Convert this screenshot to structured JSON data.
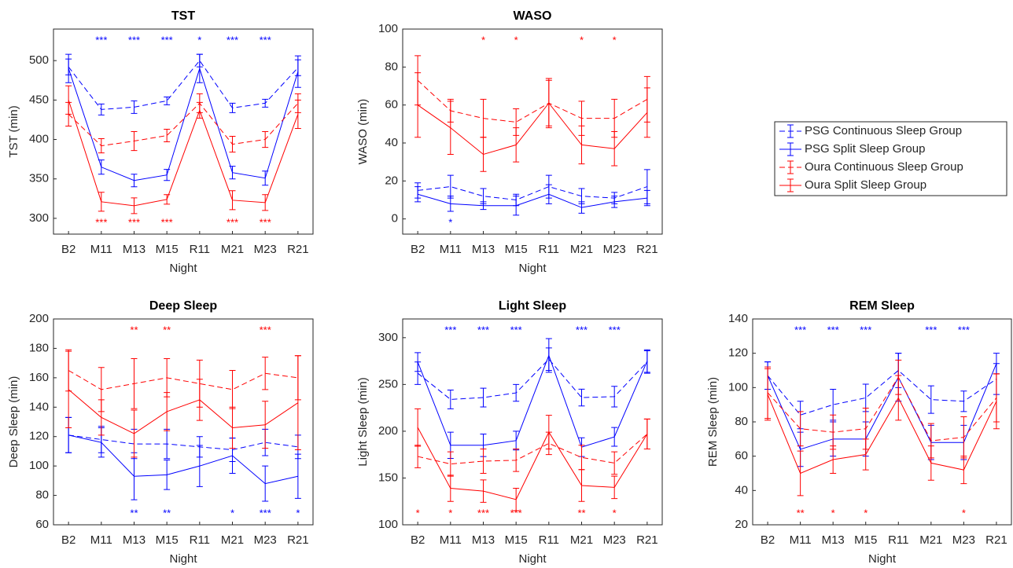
{
  "series_styles": [
    {
      "name": "PSG Continuous Sleep Group",
      "color": "#0000ff",
      "dashed": true
    },
    {
      "name": "PSG Split Sleep Group",
      "color": "#0000ff",
      "dashed": false
    },
    {
      "name": "Oura Continuous Sleep Group",
      "color": "#ff0000",
      "dashed": true
    },
    {
      "name": "Oura Split Sleep Group",
      "color": "#ff0000",
      "dashed": false
    }
  ],
  "legend": {
    "location": "east"
  },
  "chart_data": [
    {
      "type": "errorbar-line",
      "title": "TST",
      "x_label": "Night",
      "y_label": "TST (min)",
      "categories": [
        "B2",
        "M11",
        "M13",
        "M15",
        "R11",
        "M21",
        "M23",
        "R21"
      ],
      "ylim": [
        280,
        540
      ],
      "yticks": [
        300,
        350,
        400,
        450,
        500
      ],
      "series": [
        {
          "values": [
            492,
            438,
            441,
            449,
            500,
            440,
            446,
            491
          ],
          "errors": [
            10,
            7,
            8,
            5,
            8,
            6,
            5,
            10
          ]
        },
        {
          "values": [
            490,
            365,
            348,
            355,
            490,
            358,
            351,
            486
          ],
          "errors": [
            18,
            9,
            8,
            7,
            18,
            8,
            9,
            20
          ]
        },
        {
          "values": [
            432,
            392,
            398,
            405,
            446,
            394,
            400,
            446
          ],
          "errors": [
            15,
            9,
            12,
            8,
            12,
            10,
            10,
            12
          ]
        },
        {
          "values": [
            450,
            321,
            316,
            324,
            437,
            323,
            320,
            432
          ],
          "errors": [
            18,
            12,
            10,
            6,
            10,
            12,
            10,
            18
          ]
        }
      ],
      "significance": [
        {
          "color": "#0000ff",
          "position": "top",
          "labels": [
            null,
            "***",
            "***",
            "***",
            "*",
            "***",
            "***",
            null
          ]
        },
        {
          "color": "#ff0000",
          "position": "bottom",
          "labels": [
            null,
            "***",
            "***",
            "***",
            null,
            "***",
            "***",
            null
          ]
        }
      ]
    },
    {
      "type": "errorbar-line",
      "title": "WASO",
      "x_label": "Night",
      "y_label": "WASO (min)",
      "categories": [
        "B2",
        "M11",
        "M13",
        "M15",
        "R11",
        "M21",
        "M23",
        "R21"
      ],
      "ylim": [
        -8,
        100
      ],
      "yticks": [
        0,
        20,
        40,
        60,
        80,
        100
      ],
      "series": [
        {
          "values": [
            15,
            17,
            12,
            10,
            17,
            12,
            11,
            17
          ],
          "errors": [
            4,
            6,
            4,
            3,
            6,
            4,
            3,
            9
          ]
        },
        {
          "values": [
            13,
            8,
            7,
            7,
            13,
            6,
            9,
            11
          ],
          "errors": [
            4,
            4,
            2,
            5,
            5,
            3,
            3,
            4
          ]
        },
        {
          "values": [
            73,
            57,
            53,
            51,
            61,
            53,
            53,
            63
          ],
          "errors": [
            13,
            6,
            10,
            7,
            13,
            9,
            10,
            12
          ]
        },
        {
          "values": [
            60,
            48,
            34,
            39,
            61,
            39,
            37,
            56
          ],
          "errors": [
            17,
            14,
            9,
            9,
            12,
            10,
            9,
            13
          ]
        }
      ],
      "significance": [
        {
          "color": "#ff0000",
          "position": "top",
          "labels": [
            null,
            null,
            "*",
            "*",
            null,
            "*",
            "*",
            null
          ]
        },
        {
          "color": "#0000ff",
          "position": "bottom",
          "labels": [
            null,
            "*",
            null,
            null,
            null,
            null,
            null,
            null
          ]
        }
      ]
    },
    {
      "type": "errorbar-line",
      "title": "Deep Sleep",
      "x_label": "Night",
      "y_label": "Deep Sleep (min)",
      "categories": [
        "B2",
        "M11",
        "M13",
        "M15",
        "R11",
        "M21",
        "M23",
        "R21"
      ],
      "ylim": [
        60,
        200
      ],
      "yticks": [
        60,
        80,
        100,
        120,
        140,
        160,
        180,
        200
      ],
      "series": [
        {
          "values": [
            121,
            118,
            115,
            115,
            113,
            111,
            116,
            113
          ],
          "errors": [
            12,
            9,
            10,
            10,
            7,
            8,
            9,
            8
          ]
        },
        {
          "values": [
            121,
            116,
            93,
            94,
            100,
            107,
            88,
            93
          ],
          "errors": [
            12,
            10,
            16,
            10,
            14,
            12,
            12,
            15
          ]
        },
        {
          "values": [
            165,
            152,
            156,
            160,
            156,
            152,
            163,
            160
          ],
          "errors": [
            14,
            15,
            17,
            13,
            16,
            13,
            11,
            15
          ]
        },
        {
          "values": [
            152,
            133,
            122,
            137,
            145,
            126,
            128,
            143
          ],
          "errors": [
            26,
            12,
            16,
            13,
            14,
            14,
            16,
            32
          ]
        }
      ],
      "significance": [
        {
          "color": "#ff0000",
          "position": "top",
          "labels": [
            null,
            null,
            "**",
            "**",
            null,
            null,
            "***",
            null
          ]
        },
        {
          "color": "#0000ff",
          "position": "bottom",
          "labels": [
            null,
            null,
            "**",
            "**",
            null,
            "*",
            "***",
            "*"
          ]
        }
      ]
    },
    {
      "type": "errorbar-line",
      "title": "Light Sleep",
      "x_label": "Night",
      "y_label": "Light Sleep (min)",
      "categories": [
        "B2",
        "M11",
        "M13",
        "M15",
        "R11",
        "M21",
        "M23",
        "R21"
      ],
      "ylim": [
        100,
        320
      ],
      "yticks": [
        100,
        150,
        200,
        250,
        300
      ],
      "series": [
        {
          "values": [
            262,
            234,
            236,
            241,
            277,
            236,
            237,
            274
          ],
          "errors": [
            12,
            10,
            10,
            9,
            12,
            9,
            11,
            12
          ]
        },
        {
          "values": [
            274,
            185,
            185,
            190,
            281,
            183,
            194,
            275
          ],
          "errors": [
            10,
            14,
            12,
            10,
            18,
            10,
            10,
            12
          ]
        },
        {
          "values": [
            173,
            165,
            168,
            169,
            187,
            172,
            166,
            197
          ],
          "errors": [
            12,
            13,
            13,
            12,
            12,
            13,
            12,
            16
          ]
        },
        {
          "values": [
            204,
            139,
            136,
            127,
            199,
            142,
            140,
            197
          ],
          "errors": [
            20,
            14,
            12,
            12,
            18,
            17,
            12,
            16
          ]
        }
      ],
      "significance": [
        {
          "color": "#0000ff",
          "position": "top",
          "labels": [
            null,
            "***",
            "***",
            "***",
            null,
            "***",
            "***",
            null
          ]
        },
        {
          "color": "#ff0000",
          "position": "bottom",
          "labels": [
            "*",
            "*",
            "***",
            "***",
            null,
            "**",
            "*",
            null
          ]
        }
      ]
    },
    {
      "type": "errorbar-line",
      "title": "REM Sleep",
      "x_label": "Night",
      "y_label": "REM Sleep (min)",
      "categories": [
        "B2",
        "M11",
        "M13",
        "M15",
        "R11",
        "M21",
        "M23",
        "R21"
      ],
      "ylim": [
        20,
        140
      ],
      "yticks": [
        20,
        40,
        60,
        80,
        100,
        120,
        140
      ],
      "series": [
        {
          "values": [
            107,
            84,
            90,
            94,
            110,
            93,
            92,
            105
          ],
          "errors": [
            8,
            8,
            9,
            8,
            10,
            8,
            6,
            9
          ]
        },
        {
          "values": [
            107,
            64,
            70,
            70,
            106,
            68,
            68,
            114
          ],
          "errors": [
            8,
            10,
            10,
            10,
            14,
            10,
            10,
            6
          ]
        },
        {
          "values": [
            97,
            76,
            74,
            76,
            106,
            69,
            71,
            94
          ],
          "errors": [
            15,
            10,
            10,
            12,
            10,
            10,
            12,
            14
          ]
        },
        {
          "values": [
            96,
            50,
            58,
            61,
            94,
            56,
            52,
            92
          ],
          "errors": [
            15,
            13,
            8,
            9,
            13,
            10,
            8,
            16
          ]
        }
      ],
      "significance": [
        {
          "color": "#0000ff",
          "position": "top",
          "labels": [
            null,
            "***",
            "***",
            "***",
            null,
            "***",
            "***",
            null
          ]
        },
        {
          "color": "#ff0000",
          "position": "bottom",
          "labels": [
            null,
            "**",
            "*",
            "*",
            null,
            null,
            "*",
            null
          ]
        }
      ]
    }
  ]
}
